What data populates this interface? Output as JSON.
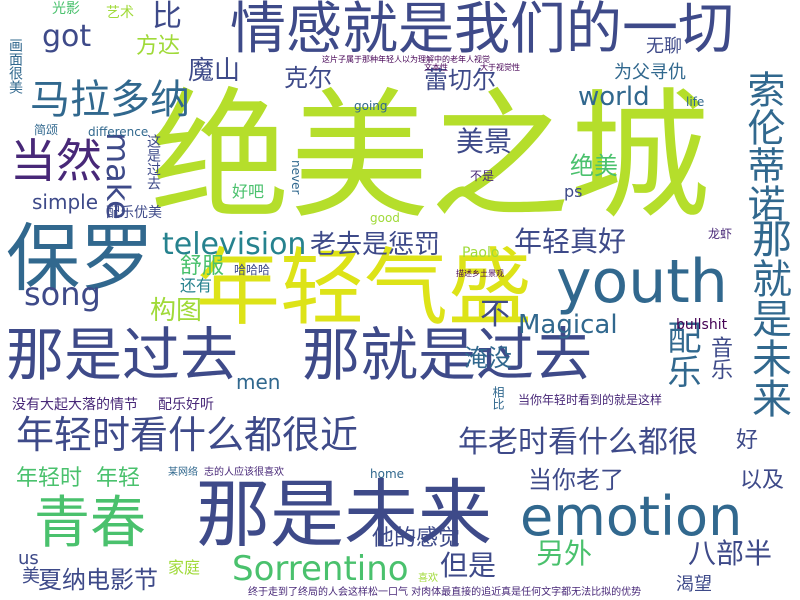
{
  "palette": {
    "background": "#ffffff",
    "lime": "#b5de2b",
    "yellowgreen": "#a0da39",
    "green": "#4ac16d",
    "teal": "#1fa187",
    "cyan": "#26828e",
    "blue": "#31688e",
    "indigo": "#3e4a89",
    "deep": "#482878",
    "dark": "#440154"
  },
  "words": [
    {
      "text": "绝美之城",
      "color": "#b5de2b"
    },
    {
      "text": "情感就是我们的一切",
      "color": "#3e4a89"
    },
    {
      "text": "保罗",
      "color": "#31688e"
    },
    {
      "text": "年轻气盛",
      "color": "#dde318"
    },
    {
      "text": "youth",
      "color": "#31688e"
    },
    {
      "text": "那是过去",
      "color": "#3e4a89"
    },
    {
      "text": "那就是过去",
      "color": "#3e4a89"
    },
    {
      "text": "那是未来",
      "color": "#3e4a89"
    },
    {
      "text": "青春",
      "color": "#4ac16d"
    },
    {
      "text": "emotion",
      "color": "#31688e"
    },
    {
      "text": "年轻时看什么都很近",
      "color": "#3e4a89"
    },
    {
      "text": "年老时看什么都很",
      "color": "#3e4a89"
    },
    {
      "text": "当然",
      "color": "#482878"
    },
    {
      "text": "马拉多纳",
      "color": "#31688e"
    },
    {
      "text": "索伦蒂诺",
      "color": "#31688e"
    },
    {
      "text": "那就是未来",
      "color": "#31688e"
    },
    {
      "text": "Sorrentino",
      "color": "#4ac16d"
    },
    {
      "text": "television",
      "color": "#26828e"
    },
    {
      "text": "song",
      "color": "#3e4a89"
    },
    {
      "text": "Magical",
      "color": "#31688e"
    },
    {
      "text": "make",
      "color": "#3e4a89"
    },
    {
      "text": "world",
      "color": "#31688e"
    },
    {
      "text": "got",
      "color": "#3e4a89"
    },
    {
      "text": "比",
      "color": "#3e4a89"
    },
    {
      "text": "方达",
      "color": "#a0da39"
    },
    {
      "text": "魔山",
      "color": "#3e4a89"
    },
    {
      "text": "克尔",
      "color": "#3e4a89"
    },
    {
      "text": "蕾切尔",
      "color": "#3e4a89"
    },
    {
      "text": "无聊",
      "color": "#3e4a89"
    },
    {
      "text": "为父寻仇",
      "color": "#31688e"
    },
    {
      "text": "美景",
      "color": "#3e4a89"
    },
    {
      "text": "绝美",
      "color": "#4ac16d"
    },
    {
      "text": "老去是惩罚",
      "color": "#3e4a89"
    },
    {
      "text": "年轻真好",
      "color": "#3e4a89"
    },
    {
      "text": "构图",
      "color": "#a0da39"
    },
    {
      "text": "不",
      "color": "#3e4a89"
    },
    {
      "text": "配乐",
      "color": "#31688e"
    },
    {
      "text": "音乐",
      "color": "#3e4a89"
    },
    {
      "text": "淹没",
      "color": "#31688e"
    },
    {
      "text": "舒服",
      "color": "#4ac16d"
    },
    {
      "text": "还有",
      "color": "#26828e"
    },
    {
      "text": "当你老了",
      "color": "#3e4a89"
    },
    {
      "text": "以及",
      "color": "#3e4a89"
    },
    {
      "text": "好",
      "color": "#3e4a89"
    },
    {
      "text": "年轻时",
      "color": "#4ac16d"
    },
    {
      "text": "年轻",
      "color": "#4ac16d"
    },
    {
      "text": "夏纳电影节",
      "color": "#3e4a89"
    },
    {
      "text": "他的感觉",
      "color": "#3e4a89"
    },
    {
      "text": "另外",
      "color": "#4ac16d"
    },
    {
      "text": "八部半",
      "color": "#3e4a89"
    },
    {
      "text": "但是",
      "color": "#3e4a89"
    },
    {
      "text": "渴望",
      "color": "#3e4a89"
    },
    {
      "text": "家庭",
      "color": "#a0da39"
    },
    {
      "text": "美",
      "color": "#3e4a89"
    },
    {
      "text": "us",
      "color": "#3e4a89"
    },
    {
      "text": "men",
      "color": "#31688e"
    },
    {
      "text": "simple",
      "color": "#3e4a89"
    },
    {
      "text": "bullshit",
      "color": "#440154"
    },
    {
      "text": "龙虾",
      "color": "#482878"
    },
    {
      "text": "Paolo",
      "color": "#a0da39"
    },
    {
      "text": "好吧",
      "color": "#4ac16d"
    },
    {
      "text": "这是过去",
      "color": "#3e4a89"
    },
    {
      "text": "配乐优美",
      "color": "#3e4a89"
    },
    {
      "text": "哈哈哈",
      "color": "#3e4a89"
    },
    {
      "text": "没有大起大落的情节",
      "color": "#482878"
    },
    {
      "text": "配乐好听",
      "color": "#482878"
    },
    {
      "text": "当你年轻时看到的就是这样",
      "color": "#482878"
    },
    {
      "text": "ps",
      "color": "#3e4a89"
    },
    {
      "text": "光影",
      "color": "#4ac16d"
    },
    {
      "text": "艺术",
      "color": "#a0da39"
    },
    {
      "text": "画面很美",
      "color": "#31688e"
    },
    {
      "text": "简颂",
      "color": "#31688e"
    },
    {
      "text": "difference",
      "color": "#31688e"
    },
    {
      "text": "going",
      "color": "#31688e"
    },
    {
      "text": "never",
      "color": "#31688e"
    },
    {
      "text": "good",
      "color": "#a0da39"
    },
    {
      "text": "life",
      "color": "#31688e"
    },
    {
      "text": "home",
      "color": "#31688e"
    },
    {
      "text": "相比",
      "color": "#31688e"
    },
    {
      "text": "不是",
      "color": "#482878"
    },
    {
      "text": "喜欢",
      "color": "#a0da39"
    },
    {
      "text": "某网络",
      "color": "#31688e"
    },
    {
      "text": "大于视觉性",
      "color": "#440154"
    },
    {
      "text": "文本性",
      "color": "#440154"
    },
    {
      "text": "终于走到了终局的人会这样松一口气 对肉体最直接的追近真是任何文字都无法比拟的优势",
      "color": "#482878"
    },
    {
      "text": "志的人应该很喜欢",
      "color": "#482878"
    },
    {
      "text": "这片子属于那种年轻人以为理解中的老年人视觉",
      "color": "#440154"
    },
    {
      "text": "描述乡土景观",
      "color": "#440154"
    }
  ]
}
